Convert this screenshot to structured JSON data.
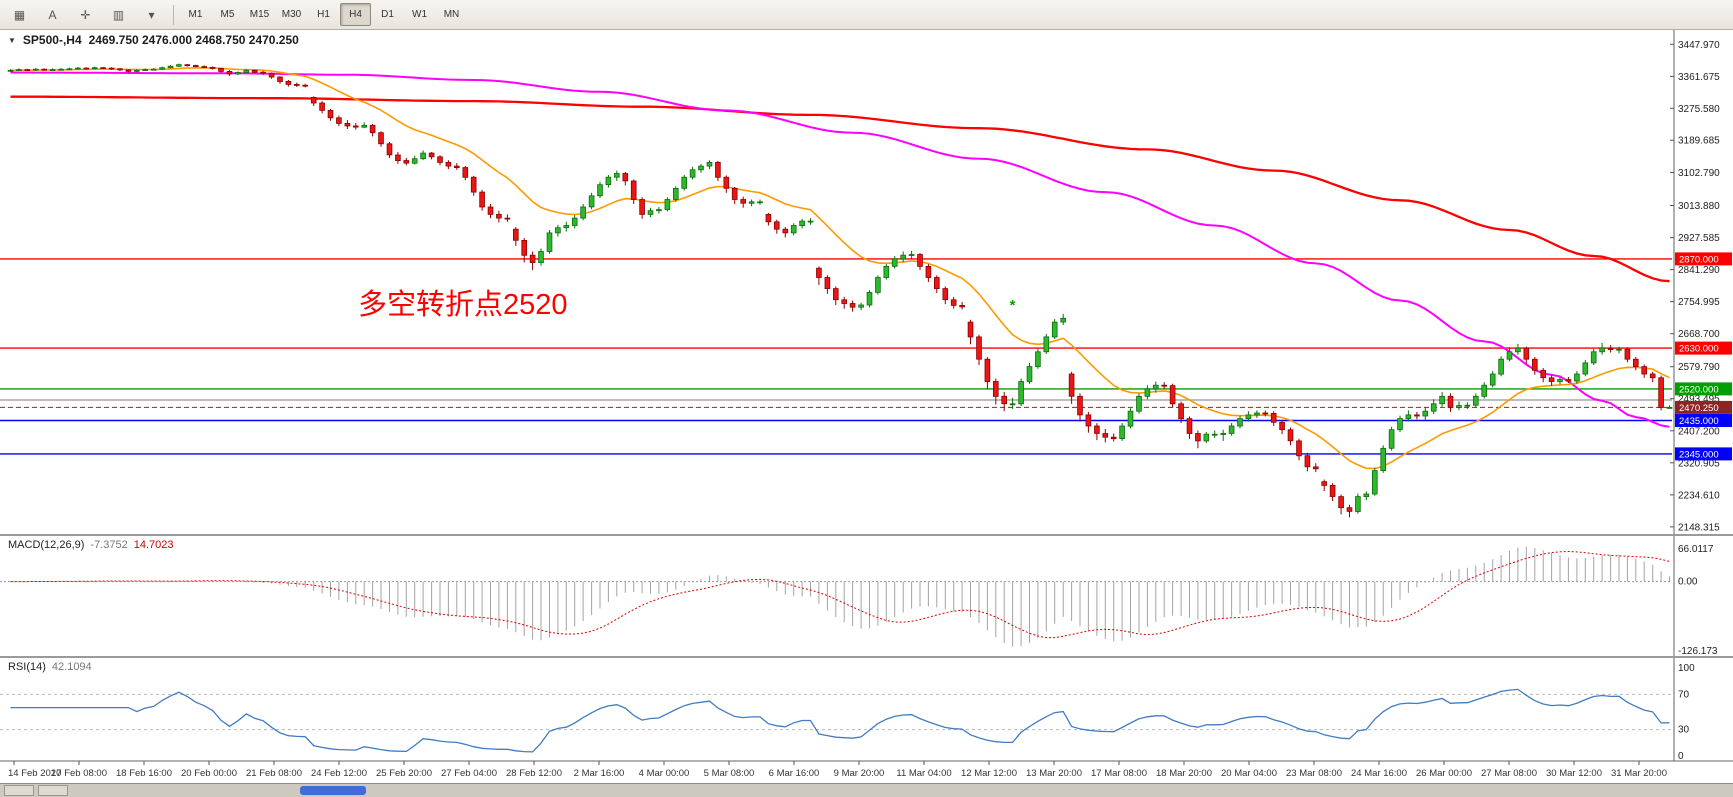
{
  "toolbar": {
    "tools": [
      {
        "name": "tile-windows-icon",
        "glyph": "▦"
      },
      {
        "name": "text-tool-icon",
        "glyph": "A"
      },
      {
        "name": "crosshair-tool-icon",
        "glyph": "✛"
      },
      {
        "name": "chart-style-icon",
        "glyph": "▥"
      },
      {
        "name": "dropdown-caret-icon",
        "glyph": "▾"
      }
    ],
    "timeframes": [
      "M1",
      "M5",
      "M15",
      "M30",
      "H1",
      "H4",
      "D1",
      "W1",
      "MN"
    ],
    "active_timeframe": "H4"
  },
  "chart": {
    "collapse_icon": "▼",
    "title": "SP500-,H4",
    "ohlc": "2469.750 2476.000 2468.750 2470.250",
    "annotation": {
      "text": "多空转折点2520",
      "color": "#ff0000"
    },
    "price_axis": [
      "3447.970",
      "3361.675",
      "3275.580",
      "3189.685",
      "3102.790",
      "3013.880",
      "2927.585",
      "2841.290",
      "2754.995",
      "2668.700",
      "2579.790",
      "2493.495",
      "2407.200",
      "2320.905",
      "2234.610",
      "2148.315"
    ],
    "time_axis": [
      "14 Feb 2020",
      "17 Feb 08:00",
      "18 Feb 16:00",
      "20 Feb 00:00",
      "21 Feb 08:00",
      "24 Feb 12:00",
      "25 Feb 20:00",
      "27 Feb 04:00",
      "28 Feb 12:00",
      "2 Mar 16:00",
      "4 Mar 00:00",
      "5 Mar 08:00",
      "6 Mar 16:00",
      "9 Mar 20:00",
      "11 Mar 04:00",
      "12 Mar 12:00",
      "13 Mar 20:00",
      "17 Mar 08:00",
      "18 Mar 20:00",
      "20 Mar 04:00",
      "23 Mar 08:00",
      "24 Mar 16:00",
      "26 Mar 00:00",
      "27 Mar 08:00",
      "30 Mar 12:00",
      "31 Mar 20:00"
    ],
    "hlines": [
      {
        "price": 2870,
        "label": "2870.000",
        "color": "#ff0000"
      },
      {
        "price": 2630,
        "label": "2630.000",
        "color": "#ff0000"
      },
      {
        "price": 2520,
        "label": "2520.000",
        "color": "#00a000"
      },
      {
        "price": 2490,
        "label": null,
        "color": "#a6a6a6"
      },
      {
        "price": 2435,
        "label": "2435.000",
        "color": "#0000ff"
      },
      {
        "price": 2345,
        "label": "2345.000",
        "color": "#0000ff"
      }
    ],
    "current_price": {
      "value": 2470.25,
      "label": "2470.250",
      "line_color": "#8b2525",
      "tag_color": "#8b2525"
    }
  },
  "macd_panel": {
    "title": "MACD(12,26,9)",
    "value_main": "-7.3752",
    "value_signal": "14.7023",
    "axis": [
      "66.0117",
      "0.00",
      "-126.173"
    ]
  },
  "rsi_panel": {
    "title": "RSI(14)",
    "value": "42.1094",
    "axis": [
      "100",
      "70",
      "30",
      "0"
    ],
    "levels": [
      70,
      30
    ],
    "line_color": "#3f7cc4"
  },
  "chart_data": {
    "type": "candlestick",
    "symbol": "SP500-",
    "timeframe": "H4",
    "colors": {
      "up": "#2db82d",
      "up_stroke": "#0a6e0a",
      "down": "#ea1515",
      "down_stroke": "#8f0000"
    },
    "candles": [
      [
        3376,
        3381,
        3374,
        3378
      ],
      [
        3378,
        3383,
        3376,
        3380
      ],
      [
        3380,
        3382,
        3377,
        3379
      ],
      [
        3379,
        3384,
        3377,
        3381
      ],
      [
        3381,
        3383,
        3378,
        3380
      ],
      [
        3380,
        3383,
        3377,
        3380
      ],
      [
        3380,
        3384,
        3378,
        3381
      ],
      [
        3381,
        3385,
        3379,
        3382
      ],
      [
        3382,
        3387,
        3380,
        3384
      ],
      [
        3384,
        3386,
        3381,
        3383
      ],
      [
        3383,
        3388,
        3381,
        3385
      ],
      [
        3385,
        3387,
        3382,
        3384
      ],
      [
        3384,
        3386,
        3379,
        3382
      ],
      [
        3382,
        3384,
        3376,
        3379
      ],
      [
        3379,
        3381,
        3372,
        3375
      ],
      [
        3375,
        3381,
        3373,
        3378
      ],
      [
        3378,
        3383,
        3376,
        3380
      ],
      [
        3380,
        3384,
        3378,
        3381
      ],
      [
        3381,
        3388,
        3379,
        3385
      ],
      [
        3385,
        3392,
        3383,
        3389
      ],
      [
        3389,
        3396,
        3387,
        3393
      ],
      [
        3393,
        3395,
        3388,
        3391
      ],
      [
        3391,
        3393,
        3386,
        3388
      ],
      [
        3388,
        3391,
        3384,
        3386
      ],
      [
        3386,
        3388,
        3380,
        3383
      ],
      [
        3383,
        3385,
        3371,
        3375
      ],
      [
        3375,
        3378,
        3363,
        3368
      ],
      [
        3368,
        3375,
        3365,
        3372
      ],
      [
        3372,
        3381,
        3370,
        3378
      ],
      [
        3378,
        3380,
        3370,
        3373
      ],
      [
        3373,
        3376,
        3366,
        3370
      ],
      [
        3370,
        3372,
        3355,
        3360
      ],
      [
        3360,
        3362,
        3342,
        3348
      ],
      [
        3348,
        3352,
        3334,
        3340
      ],
      [
        3340,
        3345,
        3333,
        3338
      ],
      [
        3338,
        3342,
        3332,
        3337
      ],
      [
        3305,
        3308,
        3282,
        3290
      ],
      [
        3290,
        3295,
        3262,
        3270
      ],
      [
        3270,
        3274,
        3242,
        3250
      ],
      [
        3250,
        3256,
        3228,
        3235
      ],
      [
        3235,
        3244,
        3220,
        3228
      ],
      [
        3228,
        3236,
        3218,
        3225
      ],
      [
        3225,
        3238,
        3222,
        3230
      ],
      [
        3230,
        3233,
        3200,
        3210
      ],
      [
        3210,
        3214,
        3172,
        3180
      ],
      [
        3180,
        3185,
        3142,
        3150
      ],
      [
        3150,
        3158,
        3126,
        3135
      ],
      [
        3135,
        3142,
        3122,
        3128
      ],
      [
        3128,
        3148,
        3124,
        3140
      ],
      [
        3140,
        3162,
        3136,
        3155
      ],
      [
        3155,
        3158,
        3138,
        3145
      ],
      [
        3145,
        3149,
        3122,
        3130
      ],
      [
        3130,
        3136,
        3112,
        3120
      ],
      [
        3120,
        3128,
        3110,
        3116
      ],
      [
        3116,
        3120,
        3082,
        3090
      ],
      [
        3090,
        3094,
        3040,
        3050
      ],
      [
        3050,
        3056,
        3000,
        3010
      ],
      [
        3010,
        3018,
        2980,
        2990
      ],
      [
        2990,
        3000,
        2968,
        2980
      ],
      [
        2980,
        2990,
        2970,
        2978
      ],
      [
        2950,
        2956,
        2905,
        2920
      ],
      [
        2920,
        2926,
        2860,
        2880
      ],
      [
        2880,
        2890,
        2840,
        2860
      ],
      [
        2860,
        2898,
        2852,
        2890
      ],
      [
        2890,
        2948,
        2884,
        2940
      ],
      [
        2940,
        2962,
        2930,
        2954
      ],
      [
        2954,
        2970,
        2944,
        2960
      ],
      [
        2960,
        2988,
        2952,
        2980
      ],
      [
        2980,
        3018,
        2974,
        3010
      ],
      [
        3010,
        3048,
        3004,
        3040
      ],
      [
        3040,
        3078,
        3034,
        3070
      ],
      [
        3070,
        3096,
        3062,
        3090
      ],
      [
        3090,
        3108,
        3080,
        3100
      ],
      [
        3100,
        3104,
        3068,
        3080
      ],
      [
        3080,
        3084,
        3018,
        3030
      ],
      [
        3030,
        3036,
        2978,
        2990
      ],
      [
        2990,
        3008,
        2982,
        3000
      ],
      [
        3000,
        3010,
        2992,
        3003
      ],
      [
        3003,
        3036,
        2998,
        3030
      ],
      [
        3030,
        3066,
        3024,
        3060
      ],
      [
        3060,
        3096,
        3054,
        3090
      ],
      [
        3090,
        3118,
        3084,
        3110
      ],
      [
        3110,
        3126,
        3102,
        3120
      ],
      [
        3120,
        3136,
        3112,
        3130
      ],
      [
        3130,
        3134,
        3080,
        3090
      ],
      [
        3090,
        3095,
        3048,
        3060
      ],
      [
        3060,
        3064,
        3018,
        3030
      ],
      [
        3030,
        3038,
        3008,
        3020
      ],
      [
        3020,
        3030,
        3012,
        3024
      ],
      [
        3024,
        3030,
        3016,
        3024
      ],
      [
        2990,
        2994,
        2960,
        2970
      ],
      [
        2970,
        2976,
        2938,
        2950
      ],
      [
        2950,
        2956,
        2928,
        2940
      ],
      [
        2940,
        2966,
        2934,
        2960
      ],
      [
        2960,
        2978,
        2952,
        2972
      ],
      [
        2972,
        2980,
        2962,
        2972
      ],
      [
        2845,
        2850,
        2800,
        2820
      ],
      [
        2820,
        2826,
        2776,
        2790
      ],
      [
        2790,
        2796,
        2746,
        2760
      ],
      [
        2760,
        2768,
        2736,
        2750
      ],
      [
        2750,
        2758,
        2728,
        2740
      ],
      [
        2740,
        2752,
        2732,
        2746
      ],
      [
        2746,
        2786,
        2740,
        2780
      ],
      [
        2780,
        2826,
        2774,
        2820
      ],
      [
        2820,
        2856,
        2814,
        2850
      ],
      [
        2850,
        2878,
        2844,
        2870
      ],
      [
        2870,
        2890,
        2862,
        2880
      ],
      [
        2880,
        2892,
        2870,
        2882
      ],
      [
        2882,
        2886,
        2840,
        2850
      ],
      [
        2850,
        2856,
        2808,
        2820
      ],
      [
        2820,
        2826,
        2778,
        2790
      ],
      [
        2790,
        2796,
        2748,
        2760
      ],
      [
        2760,
        2768,
        2736,
        2745
      ],
      [
        2745,
        2754,
        2734,
        2741
      ],
      [
        2700,
        2706,
        2640,
        2660
      ],
      [
        2660,
        2666,
        2584,
        2600
      ],
      [
        2600,
        2606,
        2520,
        2540
      ],
      [
        2540,
        2548,
        2478,
        2500
      ],
      [
        2500,
        2512,
        2460,
        2480
      ],
      [
        2480,
        2496,
        2466,
        2480
      ],
      [
        2480,
        2548,
        2474,
        2540
      ],
      [
        2540,
        2590,
        2534,
        2580
      ],
      [
        2580,
        2628,
        2574,
        2620
      ],
      [
        2620,
        2668,
        2614,
        2660
      ],
      [
        2660,
        2708,
        2654,
        2700
      ],
      [
        2700,
        2722,
        2692,
        2710
      ],
      [
        2560,
        2566,
        2480,
        2500
      ],
      [
        2500,
        2508,
        2432,
        2450
      ],
      [
        2450,
        2458,
        2402,
        2420
      ],
      [
        2420,
        2428,
        2382,
        2400
      ],
      [
        2400,
        2412,
        2376,
        2390
      ],
      [
        2390,
        2400,
        2378,
        2386
      ],
      [
        2386,
        2428,
        2380,
        2420
      ],
      [
        2420,
        2468,
        2414,
        2460
      ],
      [
        2460,
        2508,
        2454,
        2500
      ],
      [
        2500,
        2530,
        2492,
        2520
      ],
      [
        2520,
        2540,
        2510,
        2530
      ],
      [
        2530,
        2538,
        2520,
        2529
      ],
      [
        2529,
        2534,
        2470,
        2480
      ],
      [
        2480,
        2486,
        2428,
        2440
      ],
      [
        2440,
        2446,
        2386,
        2400
      ],
      [
        2400,
        2408,
        2360,
        2380
      ],
      [
        2380,
        2404,
        2374,
        2398
      ],
      [
        2398,
        2408,
        2388,
        2398
      ],
      [
        2398,
        2410,
        2380,
        2400
      ],
      [
        2400,
        2428,
        2394,
        2420
      ],
      [
        2420,
        2448,
        2414,
        2440
      ],
      [
        2440,
        2460,
        2432,
        2450
      ],
      [
        2450,
        2462,
        2442,
        2455
      ],
      [
        2455,
        2462,
        2446,
        2454
      ],
      [
        2454,
        2460,
        2420,
        2430
      ],
      [
        2430,
        2436,
        2398,
        2410
      ],
      [
        2410,
        2416,
        2368,
        2380
      ],
      [
        2380,
        2386,
        2328,
        2340
      ],
      [
        2340,
        2348,
        2298,
        2310
      ],
      [
        2310,
        2320,
        2296,
        2305
      ],
      [
        2270,
        2276,
        2245,
        2260
      ],
      [
        2260,
        2266,
        2218,
        2230
      ],
      [
        2230,
        2236,
        2182,
        2200
      ],
      [
        2200,
        2208,
        2174,
        2190
      ],
      [
        2190,
        2238,
        2184,
        2230
      ],
      [
        2230,
        2244,
        2220,
        2237
      ],
      [
        2237,
        2308,
        2232,
        2300
      ],
      [
        2300,
        2368,
        2294,
        2360
      ],
      [
        2360,
        2418,
        2354,
        2410
      ],
      [
        2410,
        2448,
        2404,
        2440
      ],
      [
        2440,
        2462,
        2432,
        2450
      ],
      [
        2450,
        2458,
        2438,
        2447
      ],
      [
        2447,
        2470,
        2436,
        2460
      ],
      [
        2460,
        2492,
        2452,
        2480
      ],
      [
        2480,
        2512,
        2472,
        2500
      ],
      [
        2500,
        2508,
        2458,
        2470
      ],
      [
        2470,
        2486,
        2462,
        2475
      ],
      [
        2475,
        2484,
        2466,
        2476
      ],
      [
        2476,
        2508,
        2470,
        2500
      ],
      [
        2500,
        2538,
        2494,
        2530
      ],
      [
        2530,
        2568,
        2524,
        2560
      ],
      [
        2560,
        2608,
        2554,
        2600
      ],
      [
        2600,
        2632,
        2594,
        2620
      ],
      [
        2620,
        2641,
        2612,
        2630
      ],
      [
        2630,
        2634,
        2588,
        2600
      ],
      [
        2600,
        2606,
        2558,
        2570
      ],
      [
        2570,
        2576,
        2538,
        2550
      ],
      [
        2550,
        2556,
        2528,
        2540
      ],
      [
        2540,
        2552,
        2532,
        2545
      ],
      [
        2545,
        2552,
        2536,
        2541
      ],
      [
        2541,
        2568,
        2534,
        2560
      ],
      [
        2560,
        2598,
        2554,
        2590
      ],
      [
        2590,
        2628,
        2584,
        2620
      ],
      [
        2620,
        2644,
        2612,
        2630
      ],
      [
        2630,
        2638,
        2618,
        2626
      ],
      [
        2626,
        2634,
        2616,
        2627
      ],
      [
        2627,
        2632,
        2592,
        2600
      ],
      [
        2600,
        2606,
        2570,
        2580
      ],
      [
        2580,
        2586,
        2550,
        2560
      ],
      [
        2560,
        2566,
        2538,
        2550
      ],
      [
        2550,
        2556,
        2462,
        2470
      ],
      [
        2469.75,
        2476,
        2468.75,
        2470.25
      ]
    ],
    "ma_fast": {
      "type": "ema",
      "period": 16,
      "color": "#ff9900"
    },
    "ma_mid": {
      "color": "#ff00ff",
      "points": [
        [
          0,
          3372
        ],
        [
          25,
          3370
        ],
        [
          40,
          3366
        ],
        [
          55,
          3352
        ],
        [
          70,
          3320
        ],
        [
          85,
          3270
        ],
        [
          100,
          3210
        ],
        [
          115,
          3140
        ],
        [
          130,
          3050
        ],
        [
          143,
          2960
        ],
        [
          155,
          2858
        ],
        [
          165,
          2758
        ],
        [
          175,
          2648
        ],
        [
          183,
          2558
        ],
        [
          189,
          2488
        ],
        [
          193,
          2444
        ],
        [
          197,
          2418
        ]
      ]
    },
    "ma_slow": {
      "color": "#ff0000",
      "points": [
        [
          0,
          3307
        ],
        [
          30,
          3303
        ],
        [
          55,
          3295
        ],
        [
          75,
          3280
        ],
        [
          95,
          3258
        ],
        [
          115,
          3222
        ],
        [
          135,
          3165
        ],
        [
          150,
          3108
        ],
        [
          165,
          3028
        ],
        [
          178,
          2948
        ],
        [
          188,
          2878
        ],
        [
          197,
          2810
        ]
      ]
    },
    "macd": {
      "fast": 12,
      "slow": 26,
      "signal": 9
    },
    "rsi": {
      "period": 14
    },
    "marker": {
      "bar": 119,
      "price": 2732,
      "glyph": "*",
      "color": "#00a000"
    }
  }
}
